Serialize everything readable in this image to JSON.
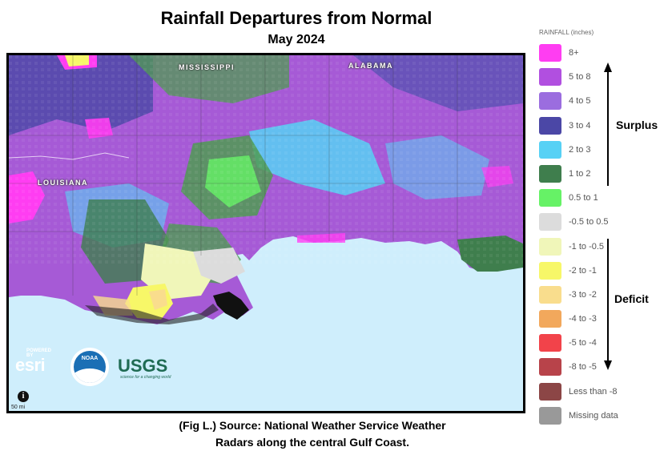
{
  "title": "Rainfall Departures from Normal",
  "subtitle": "May 2024",
  "caption_line1": "(Fig L.) Source: National Weather Service Weather",
  "caption_line2": "Radars along the central Gulf Coast.",
  "legend": {
    "header": "RAINFALL (inches)",
    "items": [
      {
        "label": "8+",
        "color": "#ff3df2"
      },
      {
        "label": "5 to 8",
        "color": "#b14fe0"
      },
      {
        "label": "4 to 5",
        "color": "#9b6ddf"
      },
      {
        "label": "3 to 4",
        "color": "#4b47a6"
      },
      {
        "label": "2 to 3",
        "color": "#57d1f5"
      },
      {
        "label": "1 to 2",
        "color": "#3f7e4d"
      },
      {
        "label": "0.5 to 1",
        "color": "#66f266"
      },
      {
        "label": "-0.5 to 0.5",
        "color": "#dcdcdc"
      },
      {
        "label": "-1 to -0.5",
        "color": "#f0f6b9"
      },
      {
        "label": "-2 to -1",
        "color": "#f7f768"
      },
      {
        "label": "-3 to -2",
        "color": "#f9dd8d"
      },
      {
        "label": "-4 to -3",
        "color": "#f2a85c"
      },
      {
        "label": "-5 to -4",
        "color": "#f2434a"
      },
      {
        "label": "-8 to -5",
        "color": "#b8434a"
      },
      {
        "label": "Less than -8",
        "color": "#8c4646"
      },
      {
        "label": "Missing data",
        "color": "#999999"
      }
    ]
  },
  "surplus_label": "Surplus",
  "deficit_label": "Deficit",
  "map": {
    "state_labels": {
      "mississippi": "MISSISSIPPI",
      "alabama": "ALABAMA",
      "louisiana": "LOUISIANA"
    },
    "gulf_color": "#cfeefc",
    "scale_label": "50 mi",
    "info_symbol": "i",
    "logos": {
      "esri": "esri",
      "esri_powered": "POWERED BY",
      "noaa": "NOAA",
      "usgs": "USGS",
      "usgs_tagline": "science for a changing world"
    }
  }
}
